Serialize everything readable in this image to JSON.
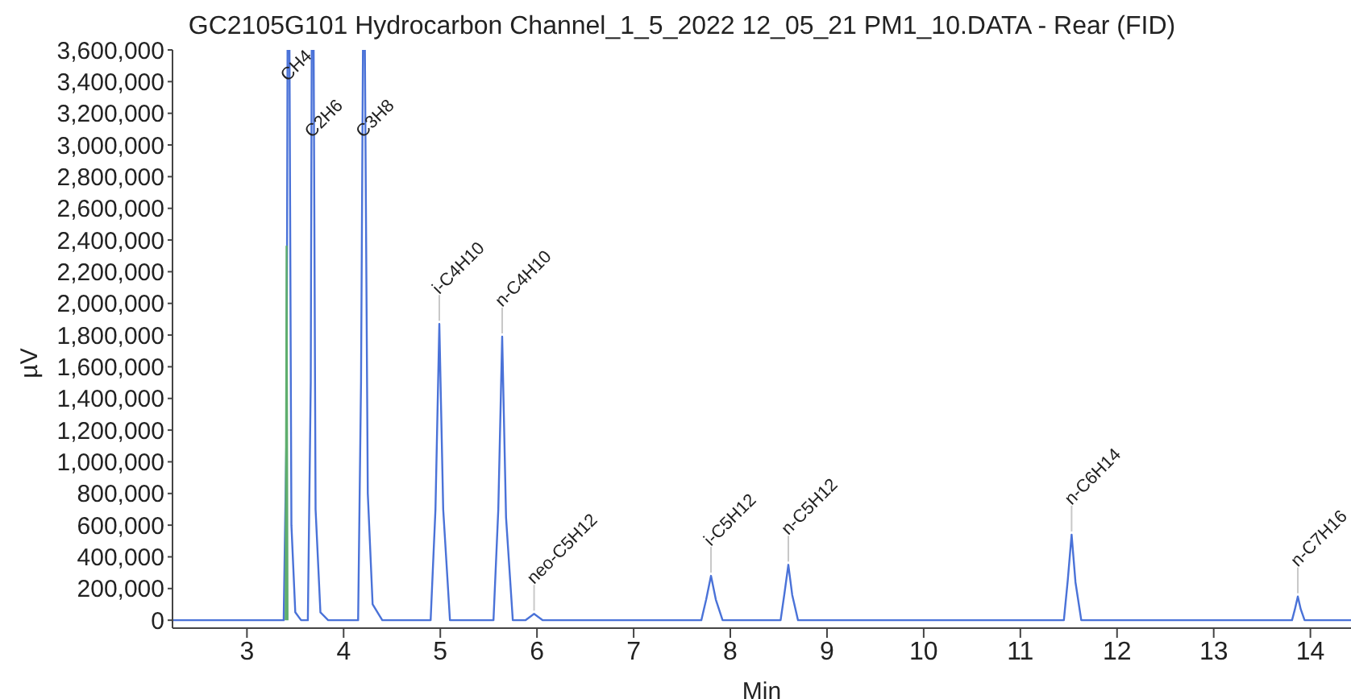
{
  "chart_data": {
    "type": "line",
    "title": "GC2105G101 Hydrocarbon Channel_1_5_2022 12_05_21 PM1_10.DATA - Rear (FID)",
    "xlabel": "Min",
    "ylabel": "µV",
    "xlim": [
      2.23,
      14.42
    ],
    "xticks": [
      3,
      4,
      5,
      6,
      7,
      8,
      9,
      10,
      11,
      12,
      13,
      14
    ],
    "ylim": [
      -50000,
      3600000
    ],
    "yticks": [
      0,
      {
        "value": 200000,
        "label": "200,000"
      },
      {
        "value": 400000,
        "label": "400,000"
      },
      {
        "value": 600000,
        "label": "600,000"
      },
      {
        "value": 800000,
        "label": "800,000"
      },
      {
        "value": 1000000,
        "label": "1,000,000"
      },
      {
        "value": 1200000,
        "label": "1,200,000"
      },
      {
        "value": 1400000,
        "label": "1,400,000"
      },
      {
        "value": 1600000,
        "label": "1,600,000"
      },
      {
        "value": 1800000,
        "label": "1,800,000"
      },
      {
        "value": 2000000,
        "label": "2,000,000"
      },
      {
        "value": 2200000,
        "label": "2,200,000"
      },
      {
        "value": 2400000,
        "label": "2,400,000"
      },
      {
        "value": 2600000,
        "label": "2,600,000"
      },
      {
        "value": 2800000,
        "label": "2,800,000"
      },
      {
        "value": 3000000,
        "label": "3,000,000"
      },
      {
        "value": 3200000,
        "label": "3,200,000"
      },
      {
        "value": 3400000,
        "label": "3,400,000"
      },
      {
        "value": 3600000,
        "label": "3,600,000"
      }
    ],
    "grid": false,
    "marker": "none",
    "line_style": "solid",
    "series": [
      {
        "color": "#4a72d8",
        "x": [
          2.23,
          3.38,
          3.41,
          3.42,
          3.44,
          3.46,
          3.5,
          3.56,
          3.63,
          3.66,
          3.67,
          3.69,
          3.71,
          3.76,
          3.84,
          4.15,
          4.18,
          4.2,
          4.22,
          4.25,
          4.3,
          4.4,
          4.9,
          4.95,
          4.99,
          5.03,
          5.1,
          5.55,
          5.6,
          5.64,
          5.68,
          5.75,
          5.88,
          5.97,
          6.06,
          7.7,
          7.75,
          7.8,
          7.85,
          7.92,
          8.52,
          8.56,
          8.6,
          8.64,
          8.7,
          11.45,
          11.49,
          11.53,
          11.57,
          11.63,
          13.81,
          13.84,
          13.87,
          13.9,
          13.94,
          14.42
        ],
        "values": [
          0,
          0,
          1200000,
          3600000,
          3600000,
          600000,
          50000,
          0,
          0,
          1500000,
          3600000,
          3600000,
          700000,
          50000,
          0,
          0,
          1500000,
          3600000,
          3600000,
          800000,
          100000,
          0,
          0,
          700000,
          1870000,
          700000,
          0,
          0,
          700000,
          1790000,
          650000,
          0,
          0,
          40000,
          0,
          0,
          130000,
          280000,
          130000,
          0,
          0,
          170000,
          350000,
          160000,
          0,
          0,
          250000,
          540000,
          240000,
          0,
          0,
          70000,
          150000,
          70000,
          0,
          0
        ]
      },
      {
        "color": "#5fae6e",
        "x": [
          3.4,
          3.41,
          3.42
        ],
        "values": [
          0,
          2360000,
          0
        ]
      }
    ],
    "annotations": [
      {
        "text": "CH4",
        "x": 3.42,
        "y": 3600000
      },
      {
        "text": "C2H6",
        "x": 3.67,
        "y": 3600000
      },
      {
        "text": "C3H8",
        "x": 4.2,
        "y": 3600000
      },
      {
        "text": "i-C4H10",
        "x": 4.99,
        "y": 1870000
      },
      {
        "text": "n-C4H10",
        "x": 5.64,
        "y": 1790000
      },
      {
        "text": "neo-C5H12",
        "x": 5.97,
        "y": 40000
      },
      {
        "text": "i-C5H12",
        "x": 7.8,
        "y": 280000
      },
      {
        "text": "n-C5H12",
        "x": 8.6,
        "y": 350000
      },
      {
        "text": "n-C6H14",
        "x": 11.53,
        "y": 540000
      },
      {
        "text": "n-C7H16",
        "x": 13.87,
        "y": 150000
      }
    ]
  }
}
